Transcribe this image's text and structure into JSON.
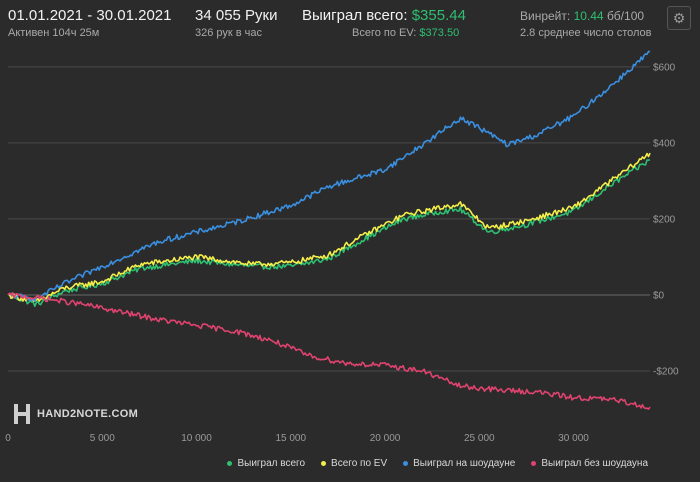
{
  "header": {
    "date_range": "01.01.2021 - 30.01.2021",
    "active_time": "Активен 104ч 25м",
    "hands": "34 055 Руки",
    "hands_rate": "326 рук в час",
    "won_label": "Выиграл всего:",
    "won_value": "$355.44",
    "ev_label": "Всего по EV:",
    "ev_value": "$373.50",
    "winrate_label": "Винрейт:",
    "winrate_value": "10.44",
    "winrate_unit": "бб/100",
    "tables": "2.8 среднее число столов"
  },
  "logo": {
    "text": "HAND2NOTE.COM"
  },
  "colors": {
    "background": "#2b2b2b",
    "accent_green": "#2fbf71",
    "won": "#2fbf71",
    "ev": "#f2ee4a",
    "showdown": "#3a8fe0",
    "non_showdown": "#e0436f"
  },
  "chart_data": {
    "type": "line",
    "xlim": [
      0,
      34055
    ],
    "ylim": [
      -300,
      660
    ],
    "x_ticks": [
      0,
      5000,
      10000,
      15000,
      20000,
      25000,
      30000
    ],
    "x_tick_labels": [
      "0",
      "5 000",
      "10 000",
      "15 000",
      "20 000",
      "25 000",
      "30 000"
    ],
    "y_ticks": [
      -200,
      0,
      200,
      400,
      600
    ],
    "y_tick_labels": [
      "-$200",
      "$0",
      "$200",
      "$400",
      "$600"
    ],
    "grid": "horizontal",
    "legend_position": "bottom-right",
    "series": [
      {
        "name": "Выиграл всего",
        "color": "#2fbf71",
        "points": [
          [
            0,
            0
          ],
          [
            1500,
            -25
          ],
          [
            3000,
            10
          ],
          [
            5000,
            30
          ],
          [
            7000,
            70
          ],
          [
            10000,
            90
          ],
          [
            13000,
            75
          ],
          [
            15000,
            75
          ],
          [
            17000,
            95
          ],
          [
            19000,
            150
          ],
          [
            21000,
            200
          ],
          [
            23000,
            220
          ],
          [
            24000,
            225
          ],
          [
            25500,
            165
          ],
          [
            27500,
            185
          ],
          [
            30000,
            220
          ],
          [
            32000,
            290
          ],
          [
            34055,
            355
          ]
        ]
      },
      {
        "name": "Всего по EV",
        "color": "#f2ee4a",
        "points": [
          [
            0,
            0
          ],
          [
            1500,
            -18
          ],
          [
            3000,
            18
          ],
          [
            5000,
            35
          ],
          [
            7000,
            80
          ],
          [
            10000,
            100
          ],
          [
            13000,
            80
          ],
          [
            15000,
            85
          ],
          [
            17000,
            105
          ],
          [
            19000,
            160
          ],
          [
            21000,
            210
          ],
          [
            23000,
            230
          ],
          [
            24000,
            240
          ],
          [
            25500,
            175
          ],
          [
            27500,
            195
          ],
          [
            30000,
            230
          ],
          [
            32000,
            300
          ],
          [
            34055,
            373
          ]
        ]
      },
      {
        "name": "Выиграл на шоудауне",
        "color": "#3a8fe0",
        "points": [
          [
            0,
            0
          ],
          [
            1500,
            -10
          ],
          [
            3000,
            30
          ],
          [
            5000,
            75
          ],
          [
            8000,
            140
          ],
          [
            10000,
            165
          ],
          [
            12000,
            190
          ],
          [
            15000,
            235
          ],
          [
            17000,
            285
          ],
          [
            20000,
            330
          ],
          [
            22000,
            395
          ],
          [
            24000,
            465
          ],
          [
            25000,
            440
          ],
          [
            26500,
            395
          ],
          [
            28000,
            420
          ],
          [
            30000,
            470
          ],
          [
            32000,
            550
          ],
          [
            34055,
            640
          ]
        ]
      },
      {
        "name": "Выиграл без шоудауна",
        "color": "#e0436f",
        "points": [
          [
            0,
            0
          ],
          [
            2000,
            -10
          ],
          [
            4000,
            -25
          ],
          [
            6000,
            -45
          ],
          [
            8000,
            -65
          ],
          [
            10000,
            -80
          ],
          [
            12000,
            -95
          ],
          [
            14000,
            -120
          ],
          [
            16000,
            -160
          ],
          [
            18000,
            -180
          ],
          [
            20000,
            -185
          ],
          [
            22000,
            -200
          ],
          [
            24000,
            -240
          ],
          [
            26000,
            -250
          ],
          [
            28000,
            -255
          ],
          [
            30000,
            -270
          ],
          [
            32000,
            -275
          ],
          [
            34055,
            -295
          ]
        ]
      }
    ]
  }
}
